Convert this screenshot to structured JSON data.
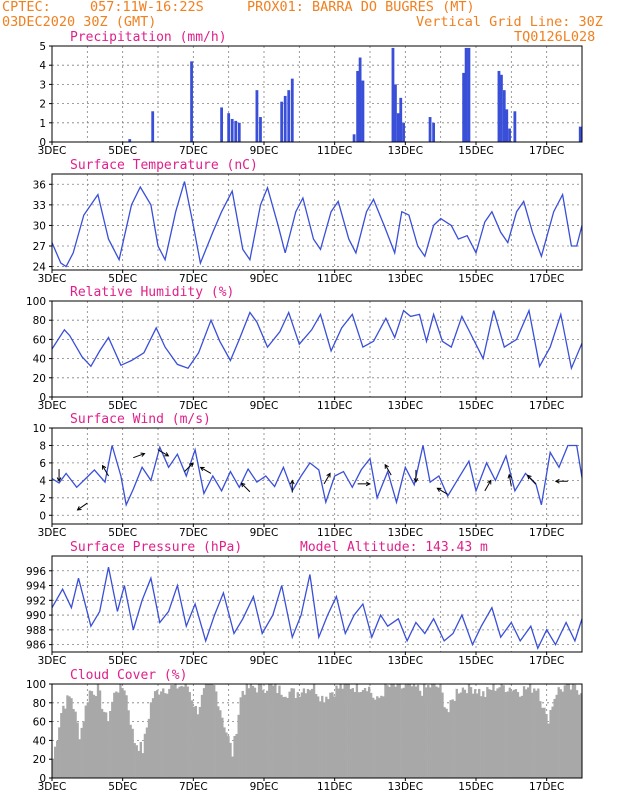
{
  "header": {
    "org": "CPTEC:",
    "coords": "057:11W-16:22S",
    "station": "PROX01: BARRA DO BUGRES (MT)",
    "run": "03DEC2020 30Z (GMT)",
    "grid_note": "Vertical Grid Line: 30Z",
    "model": "TQ0126L028"
  },
  "colors": {
    "header": "#f08020",
    "title": "#e0208a",
    "series": "#3a4fd8",
    "cloud": "#a8a8a8"
  },
  "x_axis": {
    "start_label": "3DEC",
    "end_day": 18,
    "ticks": [
      {
        "day": 3,
        "label": "3DEC"
      },
      {
        "day": 5,
        "label": "5DEC"
      },
      {
        "day": 7,
        "label": "7DEC"
      },
      {
        "day": 9,
        "label": "9DEC"
      },
      {
        "day": 11,
        "label": "11DEC"
      },
      {
        "day": 13,
        "label": "13DEC"
      },
      {
        "day": 15,
        "label": "15DEC"
      },
      {
        "day": 17,
        "label": "17DEC"
      }
    ]
  },
  "chart_data": [
    {
      "id": "precip",
      "type": "bar",
      "title": "Precipitation (mm/h)",
      "ylim": [
        0,
        5
      ],
      "yticks": [
        0,
        1,
        2,
        3,
        4,
        5
      ],
      "bars": [
        [
          5.2,
          0.15
        ],
        [
          5.85,
          1.6
        ],
        [
          6.95,
          4.2
        ],
        [
          7.8,
          1.8
        ],
        [
          8.0,
          1.5
        ],
        [
          8.1,
          1.2
        ],
        [
          8.2,
          1.1
        ],
        [
          8.3,
          1.0
        ],
        [
          8.8,
          2.7
        ],
        [
          8.9,
          1.3
        ],
        [
          9.5,
          2.1
        ],
        [
          9.6,
          2.4
        ],
        [
          9.7,
          2.7
        ],
        [
          9.8,
          3.3
        ],
        [
          11.55,
          0.4
        ],
        [
          11.65,
          3.7
        ],
        [
          11.72,
          4.4
        ],
        [
          11.8,
          3.2
        ],
        [
          12.65,
          4.9
        ],
        [
          12.72,
          3.0
        ],
        [
          12.8,
          1.5
        ],
        [
          12.87,
          2.3
        ],
        [
          12.95,
          1.0
        ],
        [
          13.7,
          1.3
        ],
        [
          13.8,
          1.0
        ],
        [
          14.65,
          3.6
        ],
        [
          14.72,
          4.9
        ],
        [
          14.8,
          4.9
        ],
        [
          15.65,
          3.7
        ],
        [
          15.72,
          3.5
        ],
        [
          15.8,
          2.7
        ],
        [
          15.87,
          1.7
        ],
        [
          15.95,
          0.7
        ],
        [
          16.1,
          1.6
        ],
        [
          17.95,
          0.8
        ]
      ]
    },
    {
      "id": "temp",
      "type": "line",
      "title": "Surface Temperature (nC)",
      "ylim": [
        23.5,
        37.5
      ],
      "yticks": [
        24,
        27,
        30,
        33,
        36
      ],
      "points": [
        [
          3.0,
          27.5
        ],
        [
          3.25,
          24.5
        ],
        [
          3.4,
          24
        ],
        [
          3.6,
          26
        ],
        [
          3.9,
          31.5
        ],
        [
          4.3,
          34.5
        ],
        [
          4.6,
          28
        ],
        [
          4.9,
          25
        ],
        [
          5.25,
          33
        ],
        [
          5.5,
          35.6
        ],
        [
          5.8,
          33
        ],
        [
          6.0,
          27
        ],
        [
          6.2,
          25
        ],
        [
          6.5,
          32
        ],
        [
          6.75,
          36.4
        ],
        [
          7.0,
          30
        ],
        [
          7.2,
          24.5
        ],
        [
          7.55,
          29
        ],
        [
          7.8,
          32
        ],
        [
          8.1,
          35
        ],
        [
          8.4,
          26.5
        ],
        [
          8.6,
          25
        ],
        [
          8.9,
          33
        ],
        [
          9.1,
          35.5
        ],
        [
          9.4,
          30
        ],
        [
          9.6,
          26
        ],
        [
          9.9,
          32
        ],
        [
          10.1,
          34
        ],
        [
          10.4,
          28
        ],
        [
          10.6,
          26.5
        ],
        [
          10.9,
          32
        ],
        [
          11.1,
          33.5
        ],
        [
          11.4,
          28
        ],
        [
          11.6,
          26
        ],
        [
          11.9,
          32
        ],
        [
          12.1,
          33.8
        ],
        [
          12.4,
          30
        ],
        [
          12.7,
          26
        ],
        [
          12.9,
          32
        ],
        [
          13.1,
          31.5
        ],
        [
          13.35,
          27
        ],
        [
          13.55,
          25.5
        ],
        [
          13.8,
          30
        ],
        [
          14.0,
          31
        ],
        [
          14.3,
          30
        ],
        [
          14.5,
          28
        ],
        [
          14.75,
          28.5
        ],
        [
          15.0,
          26
        ],
        [
          15.25,
          30.5
        ],
        [
          15.45,
          32
        ],
        [
          15.7,
          29
        ],
        [
          15.9,
          27.5
        ],
        [
          16.15,
          32
        ],
        [
          16.35,
          33.5
        ],
        [
          16.6,
          29
        ],
        [
          16.85,
          25.5
        ],
        [
          17.2,
          32
        ],
        [
          17.45,
          34.5
        ],
        [
          17.7,
          27
        ],
        [
          17.85,
          27
        ],
        [
          18.0,
          30
        ]
      ]
    },
    {
      "id": "rh",
      "type": "line",
      "title": "Relative Humidity (%)",
      "ylim": [
        0,
        100
      ],
      "yticks": [
        0,
        20,
        40,
        60,
        80,
        100
      ],
      "points": [
        [
          3.0,
          50
        ],
        [
          3.35,
          70
        ],
        [
          3.5,
          64
        ],
        [
          3.85,
          42
        ],
        [
          4.1,
          32
        ],
        [
          4.35,
          48
        ],
        [
          4.6,
          62
        ],
        [
          4.95,
          33
        ],
        [
          5.25,
          38
        ],
        [
          5.6,
          46
        ],
        [
          5.95,
          72
        ],
        [
          6.2,
          52
        ],
        [
          6.55,
          34
        ],
        [
          6.85,
          30
        ],
        [
          7.15,
          46
        ],
        [
          7.5,
          80
        ],
        [
          7.75,
          58
        ],
        [
          8.05,
          38
        ],
        [
          8.3,
          60
        ],
        [
          8.6,
          88
        ],
        [
          8.8,
          78
        ],
        [
          9.1,
          52
        ],
        [
          9.45,
          68
        ],
        [
          9.7,
          88
        ],
        [
          10.0,
          55
        ],
        [
          10.35,
          70
        ],
        [
          10.6,
          86
        ],
        [
          10.9,
          48
        ],
        [
          11.2,
          72
        ],
        [
          11.5,
          86
        ],
        [
          11.8,
          52
        ],
        [
          12.1,
          58
        ],
        [
          12.45,
          82
        ],
        [
          12.7,
          62
        ],
        [
          12.95,
          90
        ],
        [
          13.15,
          84
        ],
        [
          13.4,
          86
        ],
        [
          13.6,
          58
        ],
        [
          13.8,
          86
        ],
        [
          14.05,
          58
        ],
        [
          14.3,
          52
        ],
        [
          14.6,
          84
        ],
        [
          14.9,
          62
        ],
        [
          15.2,
          40
        ],
        [
          15.5,
          90
        ],
        [
          15.8,
          52
        ],
        [
          16.15,
          60
        ],
        [
          16.5,
          90
        ],
        [
          16.8,
          32
        ],
        [
          17.1,
          52
        ],
        [
          17.4,
          86
        ],
        [
          17.7,
          30
        ],
        [
          18.0,
          56
        ]
      ]
    },
    {
      "id": "wind",
      "type": "line",
      "title": "Surface Wind (m/s)",
      "ylim": [
        -1,
        10
      ],
      "yticks": [
        0,
        2,
        4,
        6,
        8,
        10
      ],
      "points": [
        [
          3.0,
          4.2
        ],
        [
          3.2,
          3.7
        ],
        [
          3.4,
          4.8
        ],
        [
          3.7,
          3.2
        ],
        [
          3.95,
          4.2
        ],
        [
          4.2,
          5.2
        ],
        [
          4.5,
          3.8
        ],
        [
          4.7,
          8.0
        ],
        [
          4.95,
          4.5
        ],
        [
          5.1,
          1.2
        ],
        [
          5.3,
          3.0
        ],
        [
          5.55,
          5.5
        ],
        [
          5.8,
          4.0
        ],
        [
          6.05,
          7.8
        ],
        [
          6.3,
          5.5
        ],
        [
          6.55,
          7.0
        ],
        [
          6.8,
          4.5
        ],
        [
          7.05,
          7.5
        ],
        [
          7.3,
          2.5
        ],
        [
          7.55,
          4.5
        ],
        [
          7.8,
          2.8
        ],
        [
          8.05,
          5.0
        ],
        [
          8.3,
          3.2
        ],
        [
          8.55,
          5.3
        ],
        [
          8.8,
          3.8
        ],
        [
          9.05,
          4.5
        ],
        [
          9.3,
          3.3
        ],
        [
          9.55,
          5.5
        ],
        [
          9.8,
          2.8
        ],
        [
          10.05,
          4.5
        ],
        [
          10.3,
          6.0
        ],
        [
          10.55,
          5.2
        ],
        [
          10.75,
          1.5
        ],
        [
          11.0,
          4.5
        ],
        [
          11.25,
          5.0
        ],
        [
          11.5,
          3.2
        ],
        [
          11.75,
          5.2
        ],
        [
          12.0,
          6.5
        ],
        [
          12.2,
          2.0
        ],
        [
          12.5,
          5.0
        ],
        [
          12.75,
          1.5
        ],
        [
          13.0,
          5.5
        ],
        [
          13.25,
          3.5
        ],
        [
          13.5,
          8.0
        ],
        [
          13.7,
          3.8
        ],
        [
          13.95,
          4.5
        ],
        [
          14.2,
          2.2
        ],
        [
          14.5,
          4.2
        ],
        [
          14.8,
          6.2
        ],
        [
          15.0,
          2.8
        ],
        [
          15.3,
          6.0
        ],
        [
          15.55,
          4.0
        ],
        [
          15.85,
          6.8
        ],
        [
          16.1,
          2.8
        ],
        [
          16.4,
          4.8
        ],
        [
          16.7,
          3.5
        ],
        [
          16.85,
          1.2
        ],
        [
          17.1,
          7.2
        ],
        [
          17.35,
          5.5
        ],
        [
          17.6,
          8.0
        ],
        [
          17.85,
          8.0
        ],
        [
          18.0,
          4.3
        ]
      ],
      "arrows": [
        [
          3.2,
          5.3,
          90
        ],
        [
          4.0,
          1.4,
          145
        ],
        [
          4.6,
          4.5,
          -120
        ],
        [
          5.3,
          6.6,
          -20
        ],
        [
          6.0,
          7.5,
          30
        ],
        [
          6.75,
          5.0,
          -45
        ],
        [
          7.5,
          4.8,
          -150
        ],
        [
          8.6,
          2.7,
          -135
        ],
        [
          9.8,
          2.6,
          -90
        ],
        [
          10.7,
          3.6,
          -60
        ],
        [
          11.65,
          3.6,
          0
        ],
        [
          12.6,
          4.6,
          -120
        ],
        [
          13.3,
          5.2,
          90
        ],
        [
          14.2,
          2.4,
          -150
        ],
        [
          15.25,
          2.8,
          -60
        ],
        [
          16.0,
          3.3,
          -100
        ],
        [
          16.7,
          3.6,
          -135
        ],
        [
          17.6,
          3.9,
          -180
        ]
      ]
    },
    {
      "id": "pres",
      "type": "line",
      "title": "Surface Pressure (hPa)",
      "note": "Model Altitude: 143.43 m",
      "ylim": [
        985,
        998
      ],
      "yticks": [
        986,
        988,
        990,
        992,
        994,
        996
      ],
      "points": [
        [
          3.0,
          991
        ],
        [
          3.3,
          993.5
        ],
        [
          3.55,
          991
        ],
        [
          3.75,
          995
        ],
        [
          4.1,
          988.5
        ],
        [
          4.35,
          990.5
        ],
        [
          4.6,
          996.5
        ],
        [
          4.85,
          990.5
        ],
        [
          5.05,
          994
        ],
        [
          5.3,
          988
        ],
        [
          5.55,
          992
        ],
        [
          5.8,
          995
        ],
        [
          6.05,
          989
        ],
        [
          6.3,
          990.5
        ],
        [
          6.55,
          994
        ],
        [
          6.8,
          988.5
        ],
        [
          7.05,
          991.5
        ],
        [
          7.35,
          986.5
        ],
        [
          7.6,
          990
        ],
        [
          7.85,
          993
        ],
        [
          8.15,
          987.5
        ],
        [
          8.4,
          989.5
        ],
        [
          8.7,
          992.5
        ],
        [
          8.95,
          987.5
        ],
        [
          9.25,
          990
        ],
        [
          9.5,
          994
        ],
        [
          9.8,
          987
        ],
        [
          10.05,
          990
        ],
        [
          10.3,
          995.5
        ],
        [
          10.55,
          987
        ],
        [
          10.8,
          990
        ],
        [
          11.05,
          992.5
        ],
        [
          11.3,
          987.5
        ],
        [
          11.55,
          990
        ],
        [
          11.8,
          991.5
        ],
        [
          12.05,
          987
        ],
        [
          12.3,
          990
        ],
        [
          12.5,
          988.5
        ],
        [
          12.8,
          989.5
        ],
        [
          13.05,
          986.5
        ],
        [
          13.3,
          989
        ],
        [
          13.55,
          987.5
        ],
        [
          13.8,
          989.5
        ],
        [
          14.1,
          986.5
        ],
        [
          14.35,
          987.5
        ],
        [
          14.6,
          990
        ],
        [
          14.9,
          986
        ],
        [
          15.15,
          988.5
        ],
        [
          15.45,
          991
        ],
        [
          15.7,
          987
        ],
        [
          16.0,
          989
        ],
        [
          16.25,
          986.5
        ],
        [
          16.55,
          988.5
        ],
        [
          16.75,
          985.5
        ],
        [
          17.0,
          988
        ],
        [
          17.25,
          986
        ],
        [
          17.55,
          989
        ],
        [
          17.8,
          986.5
        ],
        [
          18.0,
          989.5
        ]
      ]
    },
    {
      "id": "cloud",
      "type": "area",
      "title": "Cloud Cover (%)",
      "ylim": [
        0,
        100
      ],
      "yticks": [
        0,
        20,
        40,
        60,
        80,
        100
      ],
      "seed_levels": [
        20,
        75,
        88,
        45,
        92,
        94,
        60,
        95,
        97,
        40,
        30,
        85,
        96,
        96,
        98,
        98,
        70,
        96,
        97,
        60,
        25,
        93,
        97,
        96,
        98,
        94,
        92,
        90,
        96,
        98,
        85,
        92,
        97,
        98,
        97,
        99,
        80,
        96,
        98,
        96,
        97,
        93,
        98,
        97,
        70,
        94,
        97,
        96,
        88,
        97,
        98,
        96,
        93,
        96,
        97,
        60,
        92,
        97,
        95,
        94
      ]
    }
  ]
}
